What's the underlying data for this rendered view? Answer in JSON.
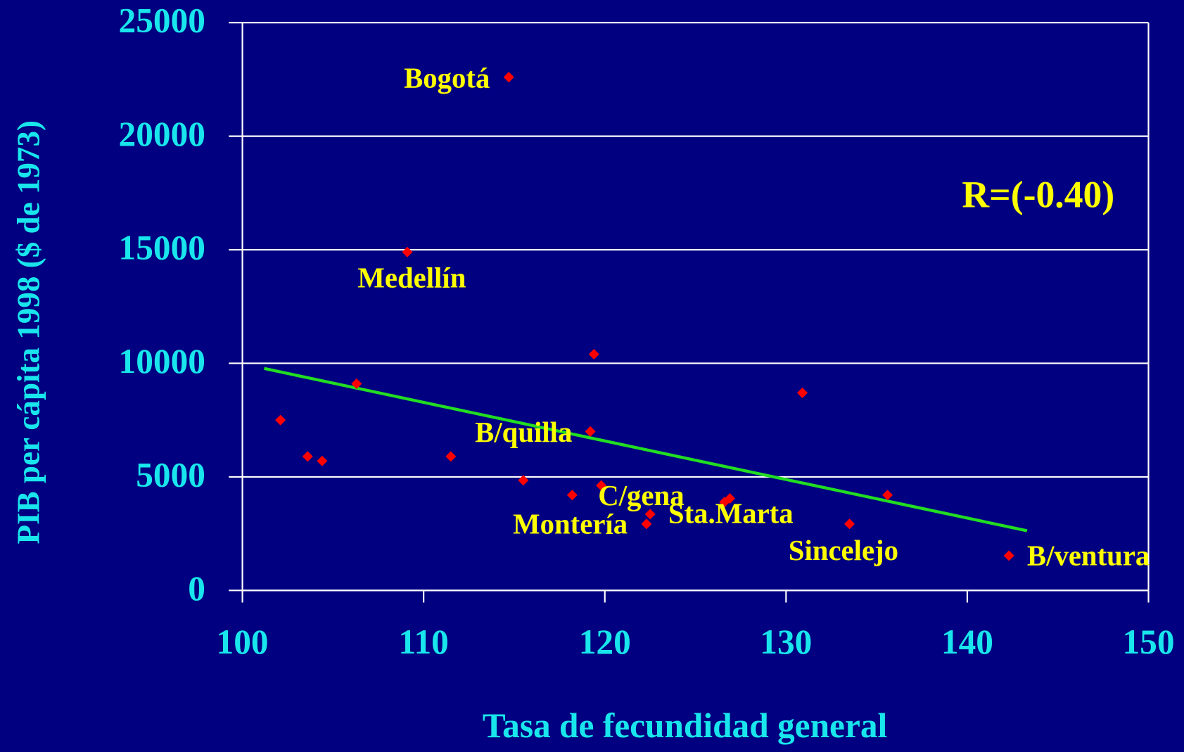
{
  "chart_data": {
    "type": "scatter",
    "x_label": "Tasa de fecundidad general",
    "y_label": "PIB per cápita 1998 ($ de 1973)",
    "annotation": "R=(-0.40)",
    "x": [
      114.7,
      109.1,
      119.4,
      106.3,
      130.9,
      102.1,
      119.2,
      103.6,
      104.4,
      111.5,
      115.5,
      119.8,
      118.2,
      135.6,
      126.9,
      126.6,
      122.5,
      122.3,
      133.5,
      142.3
    ],
    "y": [
      22600,
      14900,
      10400,
      9100,
      8700,
      7500,
      7000,
      5900,
      5700,
      5900,
      4850,
      4620,
      4200,
      4200,
      4050,
      3890,
      3360,
      2930,
      2930,
      1530
    ],
    "labels": [
      "Bogotá",
      "Medellín",
      null,
      null,
      null,
      null,
      "B/quilla",
      null,
      null,
      null,
      null,
      "C/gena",
      null,
      null,
      null,
      null,
      "Sta.Marta",
      "Montería",
      "Sincelejo",
      "B/ventura"
    ],
    "color": "#ff0000",
    "trendline": {
      "x": [
        101.2,
        143.3
      ],
      "y": [
        9774,
        2626
      ],
      "color": "#22dd22"
    },
    "xlim": [
      100,
      150
    ],
    "xticks": [
      100,
      110,
      120,
      130,
      140,
      150
    ],
    "ylim": [
      0,
      25000
    ],
    "yticks": [
      0,
      5000,
      10000,
      15000,
      20000,
      25000
    ],
    "grid": true
  }
}
